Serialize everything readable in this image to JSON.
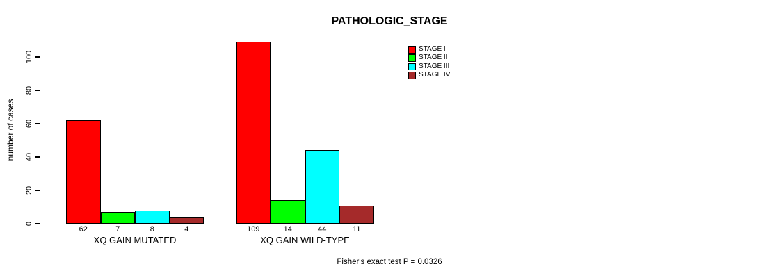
{
  "chart_data": {
    "type": "bar",
    "title": "PATHOLOGIC_STAGE",
    "ylabel": "number of cases",
    "ylim": [
      0,
      109
    ],
    "yticks": [
      0,
      20,
      40,
      60,
      80,
      100
    ],
    "grid": false,
    "categories": [
      "XQ GAIN MUTATED",
      "XQ GAIN WILD-TYPE"
    ],
    "series": [
      {
        "name": "STAGE I",
        "color": "#ff0000",
        "values": [
          62,
          109
        ]
      },
      {
        "name": "STAGE II",
        "color": "#00ff00",
        "values": [
          7,
          14
        ]
      },
      {
        "name": "STAGE III",
        "color": "#00ffff",
        "values": [
          8,
          44
        ]
      },
      {
        "name": "STAGE IV",
        "color": "#a52a2a",
        "values": [
          4,
          11
        ]
      }
    ],
    "legend_position": "top-right",
    "bar_border_color": "#000000",
    "annotation": "Fisher's exact test P = 0.0326"
  }
}
